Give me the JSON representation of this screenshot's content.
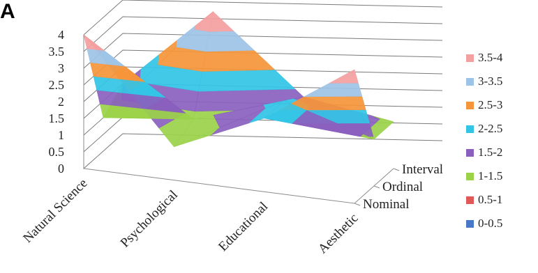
{
  "panel_label": "A",
  "chart_data": {
    "type": "surface",
    "title": "",
    "categories": [
      "Natural Science",
      "Psychological",
      "Educational",
      "Aesthetic"
    ],
    "series": [
      {
        "name": "Nominal",
        "values": [
          4,
          1,
          2.2,
          4
        ]
      },
      {
        "name": "Ordinal",
        "values": [
          1,
          1.3,
          2.2,
          1.4
        ]
      },
      {
        "name": "Interval",
        "values": [
          1.5,
          4,
          1.8,
          1.4
        ]
      }
    ],
    "zlim": [
      0,
      4
    ],
    "z_ticks": [
      "0",
      "0.5",
      "1",
      "1.5",
      "2",
      "2.5",
      "3",
      "3.5",
      "4"
    ],
    "legend_position": "right",
    "legend": [
      {
        "label": "3.5-4",
        "color": "#f4a0a0"
      },
      {
        "label": "3-3.5",
        "color": "#9dc3e6"
      },
      {
        "label": "2.5-3",
        "color": "#f5953a"
      },
      {
        "label": "2-2.5",
        "color": "#33c4e6"
      },
      {
        "label": "1.5-2",
        "color": "#8a5fbe"
      },
      {
        "label": "1-1.5",
        "color": "#9bd24a"
      },
      {
        "label": "0.5-1",
        "color": "#e05858"
      },
      {
        "label": "0-0.5",
        "color": "#4a78c8"
      }
    ]
  }
}
